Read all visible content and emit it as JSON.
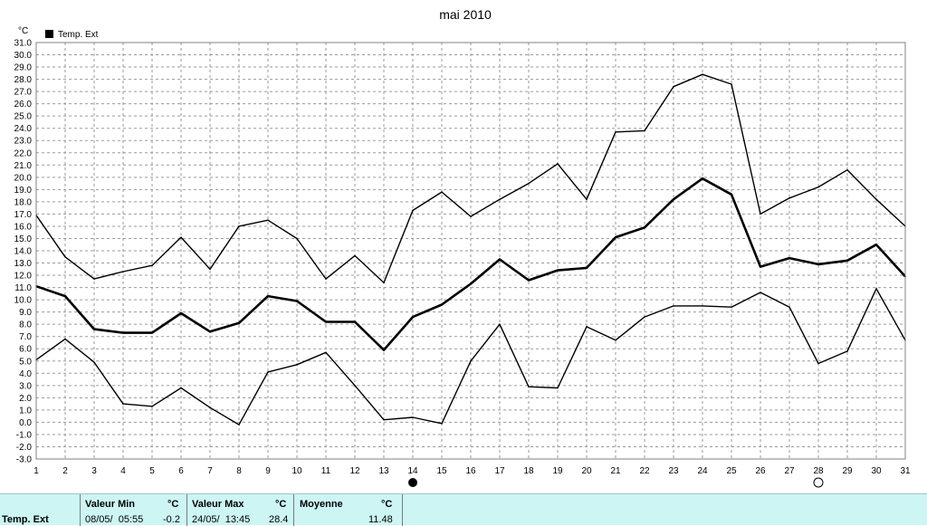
{
  "chart_data": {
    "type": "line",
    "title": "mai 2010",
    "ylabel": "°C",
    "xlabel": "",
    "legend": {
      "label": "Temp. Ext",
      "placement": "top-left"
    },
    "ylim": [
      -3.0,
      31.0
    ],
    "ytick_step": 1.0,
    "x": [
      1,
      2,
      3,
      4,
      5,
      6,
      7,
      8,
      9,
      10,
      11,
      12,
      13,
      14,
      15,
      16,
      17,
      18,
      19,
      20,
      21,
      22,
      23,
      24,
      25,
      26,
      27,
      28,
      29,
      30,
      31
    ],
    "grid": true,
    "moon_markers": [
      {
        "day": 14,
        "phase": "new-moon"
      },
      {
        "day": 28,
        "phase": "full-moon"
      }
    ],
    "series": [
      {
        "role": "max",
        "values": [
          16.9,
          13.5,
          11.7,
          12.3,
          12.8,
          15.1,
          12.5,
          16.0,
          16.5,
          15.0,
          11.7,
          13.6,
          11.4,
          17.3,
          18.8,
          16.8,
          18.2,
          19.5,
          21.1,
          18.2,
          23.7,
          23.8,
          27.4,
          28.4,
          27.6,
          17.0,
          18.3,
          19.2,
          20.6,
          18.2,
          16.0
        ],
        "bold": false
      },
      {
        "role": "mean",
        "values": [
          11.1,
          10.3,
          7.6,
          7.3,
          7.3,
          8.9,
          7.4,
          8.1,
          10.3,
          9.9,
          8.2,
          8.2,
          5.9,
          8.6,
          9.6,
          11.3,
          13.3,
          11.6,
          12.4,
          12.6,
          15.1,
          15.9,
          18.2,
          19.9,
          18.6,
          12.7,
          13.4,
          12.9,
          13.2,
          14.5,
          11.9
        ],
        "bold": true
      },
      {
        "role": "min",
        "values": [
          5.1,
          6.8,
          4.9,
          1.5,
          1.3,
          2.8,
          1.2,
          -0.2,
          4.1,
          4.7,
          5.7,
          3.0,
          0.2,
          0.4,
          -0.1,
          5.0,
          8.0,
          2.9,
          2.8,
          7.8,
          6.7,
          8.6,
          9.5,
          9.5,
          9.4,
          10.6,
          9.4,
          4.8,
          5.8,
          10.9,
          6.7
        ],
        "bold": false
      }
    ]
  },
  "stats": {
    "series_name": "Temp. Ext",
    "min": {
      "header": "Valeur Min",
      "unit": "°C",
      "date": "08/05/  05:55",
      "value": "-0.2"
    },
    "max": {
      "header": "Valeur Max",
      "unit": "°C",
      "date": "24/05/  13:45",
      "value": "28.4"
    },
    "mean": {
      "header": "Moyenne",
      "unit": "°C",
      "value": "11.48"
    }
  },
  "colors": {
    "panel_bg": "#ccf5f3",
    "grid": "#9a9a9a",
    "line": "#000000"
  }
}
